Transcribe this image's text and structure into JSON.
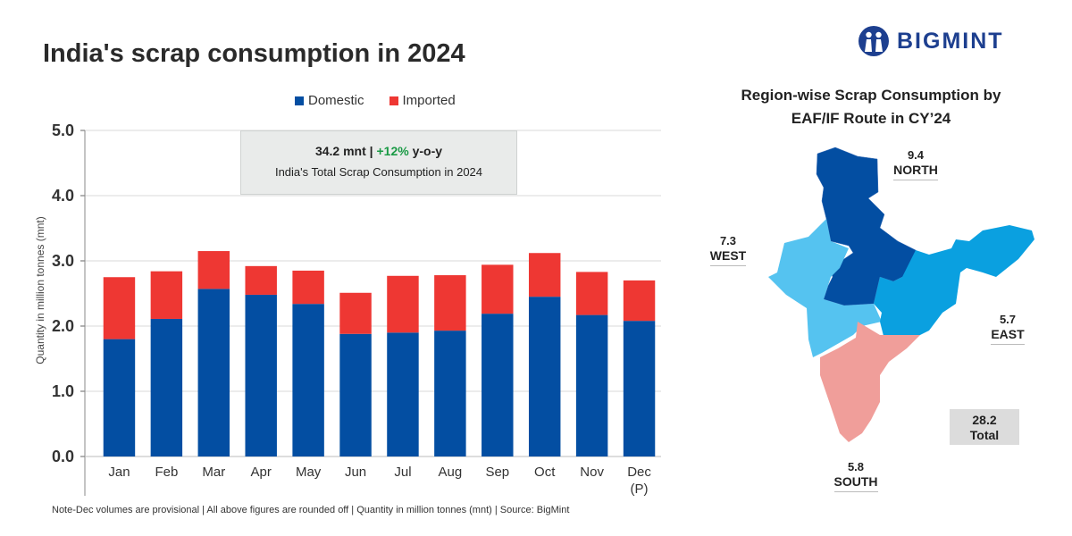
{
  "title": "India's scrap consumption in 2024",
  "logo": {
    "text": "BIGMINT"
  },
  "summary": {
    "value": "34.2 mnt",
    "sep": " | ",
    "growth": "+12%",
    "growth_suffix": " y-o-y",
    "caption": "India's Total Scrap Consumption in 2024"
  },
  "note": "Note-Dec volumes are provisional | All above figures are rounded off | Quantity in million tonnes (mnt) | Source: BigMint",
  "chart_data": {
    "type": "bar",
    "stacked": true,
    "title": "India's scrap consumption in 2024",
    "ylabel": "Quantity in million tonnes (mnt)",
    "xlabel": "",
    "ylim": [
      0,
      5
    ],
    "yticks": [
      "0.0",
      "1.0",
      "2.0",
      "3.0",
      "4.0",
      "5.0"
    ],
    "grid": true,
    "legend": "top",
    "categories": [
      "Jan",
      "Feb",
      "Mar",
      "Apr",
      "May",
      "Jun",
      "Jul",
      "Aug",
      "Sep",
      "Oct",
      "Nov",
      "Dec\n(P)"
    ],
    "series": [
      {
        "name": "Domestic",
        "color": "#034EA2",
        "values": [
          1.8,
          2.11,
          2.57,
          2.48,
          2.34,
          1.88,
          1.9,
          1.93,
          2.19,
          2.45,
          2.17,
          2.08
        ]
      },
      {
        "name": "Imported",
        "color": "#EE3733",
        "values": [
          0.95,
          0.73,
          0.58,
          0.44,
          0.51,
          0.63,
          0.87,
          0.85,
          0.75,
          0.67,
          0.66,
          0.62
        ]
      }
    ]
  },
  "map": {
    "title_line1": "Region-wise Scrap Consumption by",
    "title_line2": "EAF/IF Route in CY’24",
    "regions": [
      {
        "name": "NORTH",
        "value": "9.4",
        "color": "#034EA2"
      },
      {
        "name": "WEST",
        "value": "7.3",
        "color": "#55C3F0"
      },
      {
        "name": "EAST",
        "value": "5.7",
        "color": "#0AA0E0"
      },
      {
        "name": "SOUTH",
        "value": "5.8",
        "color": "#F09E9A"
      }
    ],
    "total_value": "28.2",
    "total_label": "Total"
  }
}
